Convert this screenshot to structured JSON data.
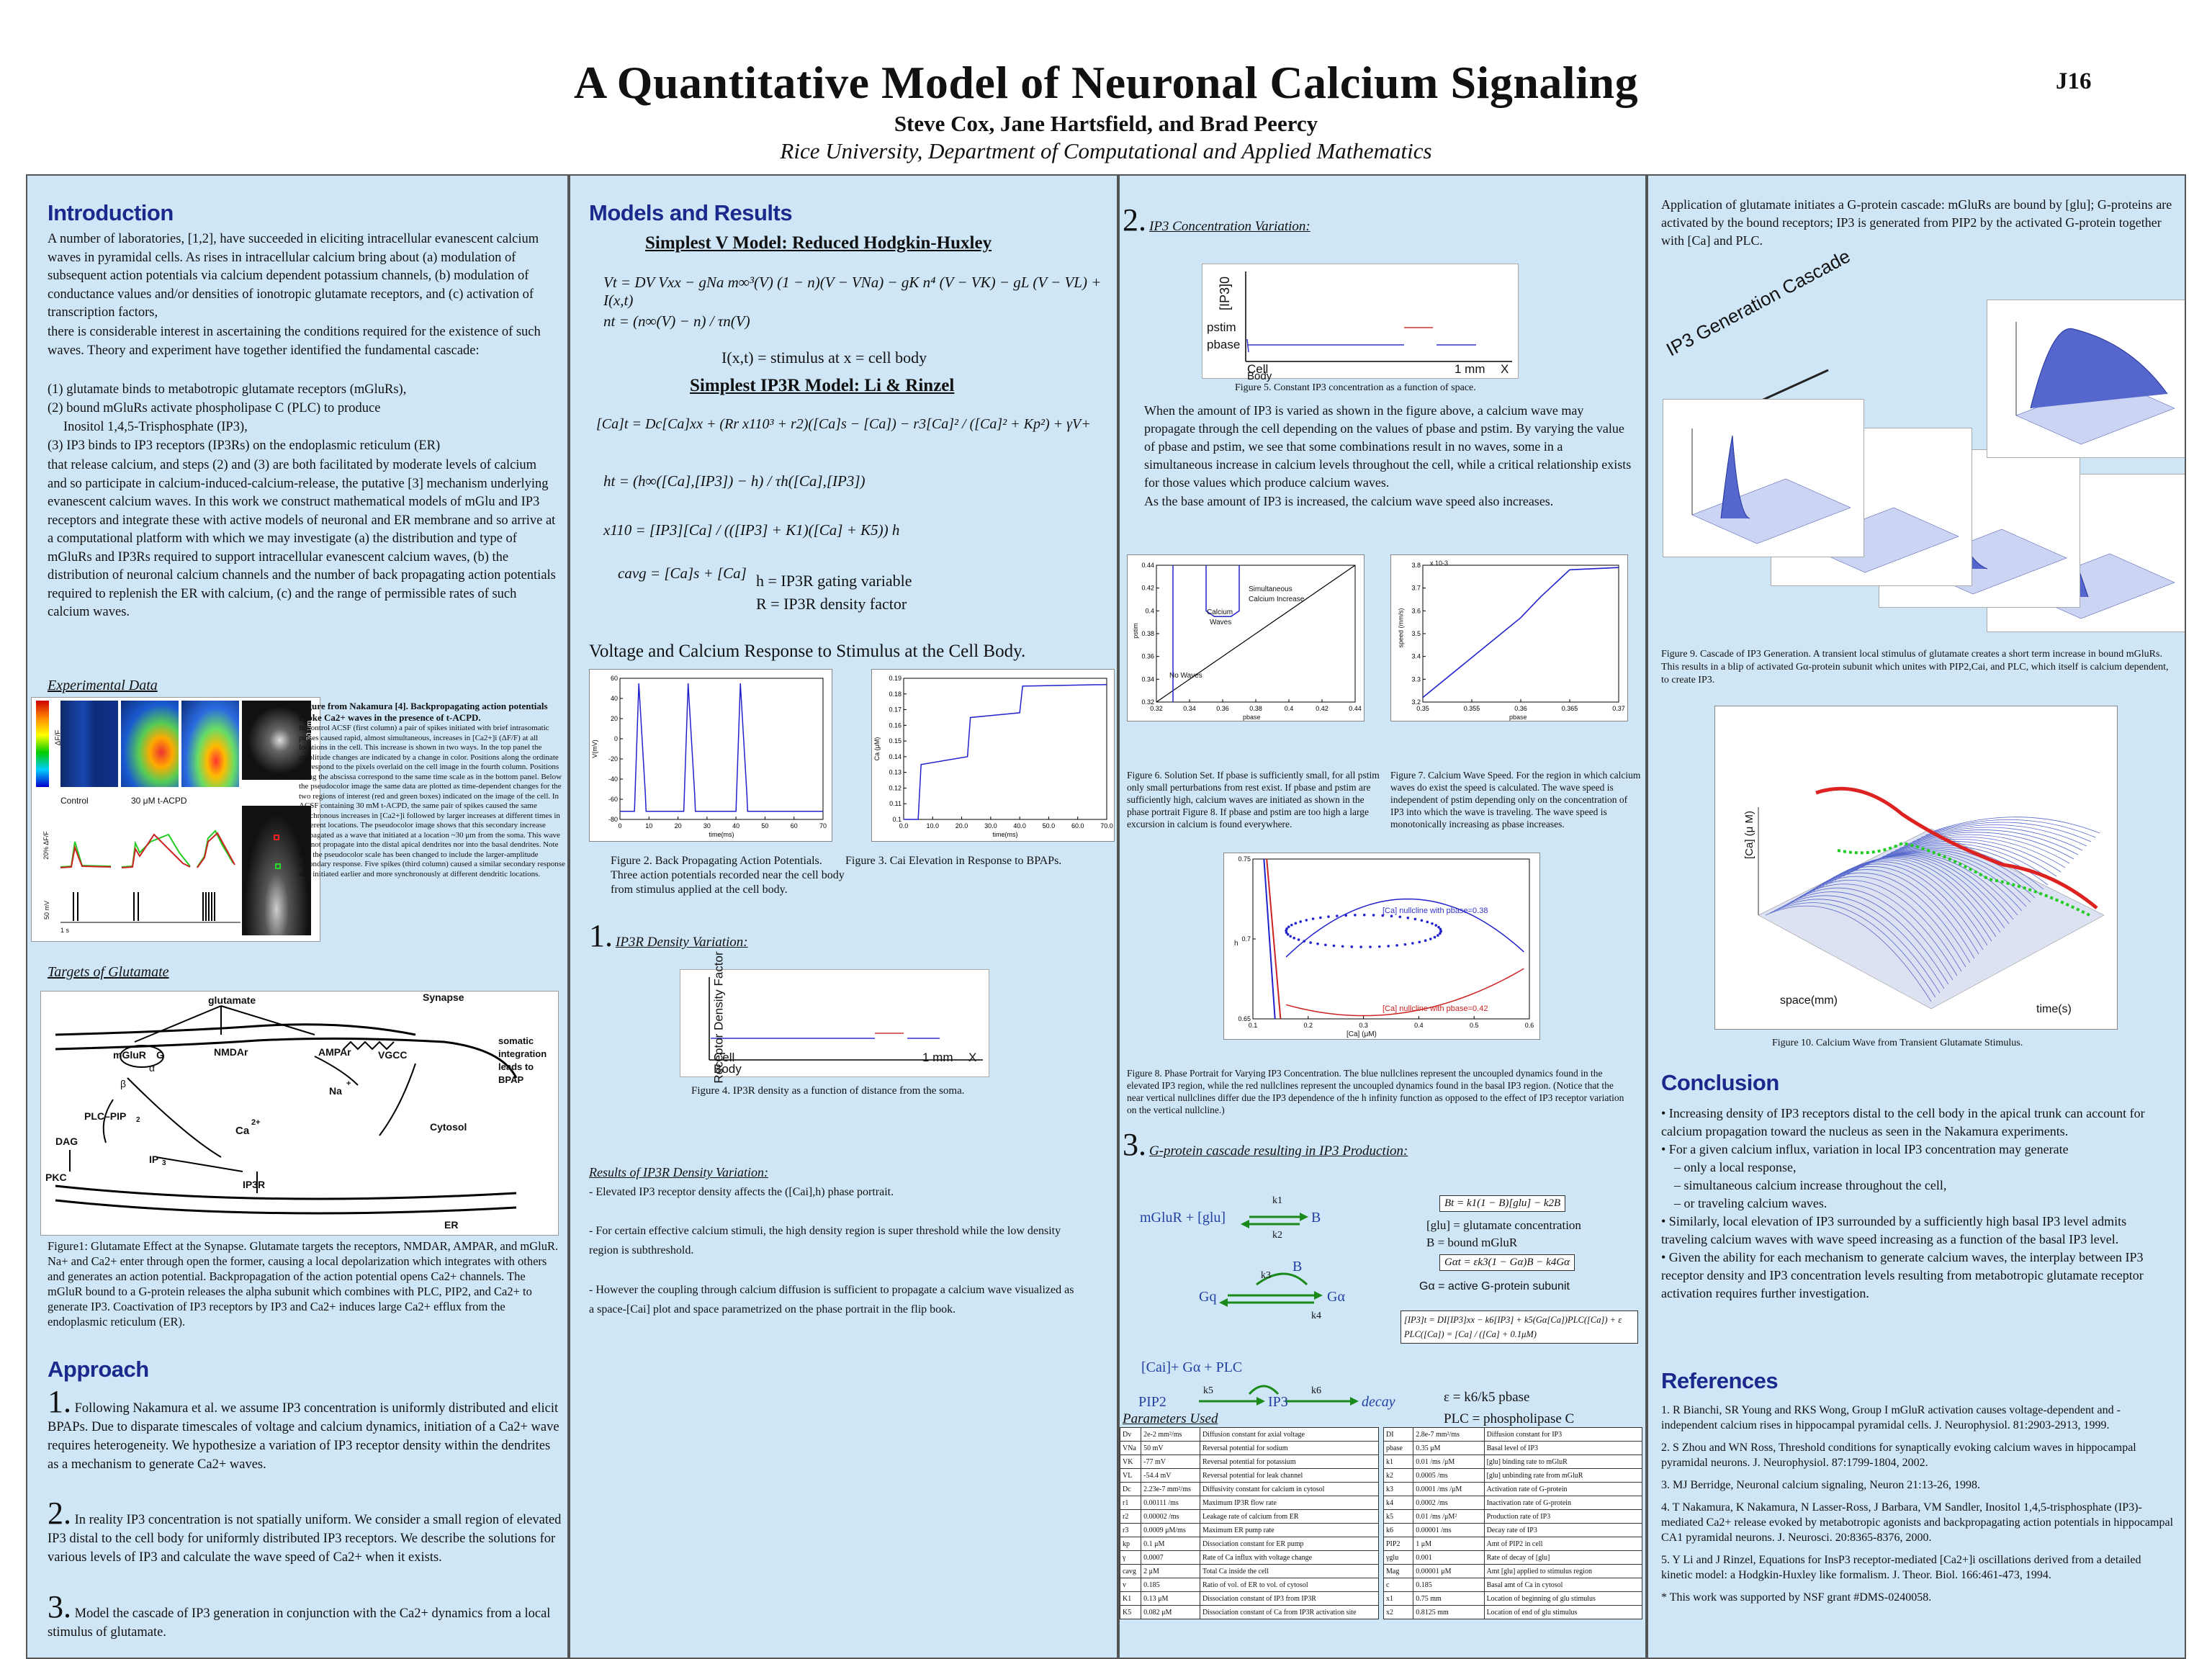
{
  "header": {
    "title": "A Quantitative Model of Neuronal Calcium Signaling",
    "authors": "Steve Cox, Jane Hartsfield, and Brad Peercy",
    "affiliation": "Rice University, Department of Computational and Applied Mathematics",
    "poster_id": "J16"
  },
  "intro": {
    "heading": "Introduction",
    "para1": "A number of laboratories, [1,2], have succeeded in eliciting intracellular evanescent calcium waves in pyramidal cells.  As rises in intracellular calcium bring about (a) modulation of subsequent action potentials via calcium dependent potassium channels, (b) modulation of conductance values and/or densities of ionotropic glutamate receptors, and (c) activation of transcription factors,",
    "para2": "there is considerable interest in ascertaining the conditions required for the existence of such waves. Theory and experiment have together identified the fundamental cascade:",
    "list": [
      "(1) glutamate binds to metabotropic glutamate receptors (mGluRs),",
      "(2) bound mGluRs activate phospholipase C (PLC) to produce",
      "Inositol 1,4,5-Trisphosphate (IP3),",
      "(3) IP3 binds to IP3 receptors (IP3Rs) on the endoplasmic reticulum (ER)"
    ],
    "para3": "that release calcium, and steps (2) and (3) are both facilitated by moderate levels of calcium and so participate in calcium-induced-calcium-release, the putative [3] mechanism underlying evanescent calcium waves. In this work we construct mathematical models of mGlu and IP3 receptors and integrate these with active models of neuronal and ER membrane and so arrive at a computational platform with which we may investigate (a) the distribution and type of mGluRs and IP3Rs required to support intracellular evanescent calcium waves, (b) the distribution of neuronal calcium channels and the number of back propagating action potentials required to replenish the ER with calcium, (c) and the range of permissible rates of such calcium waves."
  },
  "experimental": {
    "heading": "Experimental Data",
    "labels": {
      "control": "Control",
      "acpd": "30 μM t-ACPD",
      "scale1": "30 μm",
      "ybar1": "20% ΔF/F",
      "ybar2": "50 mV",
      "xbar": "1 s",
      "dff": "ΔF/F"
    },
    "caption_bold": "Figure from Nakamura [4]. Backpropagating action potentials evoke Ca2+ waves in the presence of t-ACPD.",
    "caption": "In control ACSF (first column) a pair of spikes initiated with brief intrasomatic pulses caused rapid, almost simultaneous, increases in [Ca2+]i (ΔF/F) at all locations in the cell. This increase is shown in two ways. In the top panel the amplitude changes are indicated by a change in color. Positions along the ordinate correspond to the pixels overlaid on the cell image in the fourth column. Positions along the abscissa correspond to the same time scale as in the bottom panel. Below the pseudocolor image the same data are plotted as time-dependent changes for the two regions of interest (red and green boxes) indicated on the image of the cell. In ACSF containing 30 mM t-ACPD, the same pair of spikes caused the same synchronous increases in [Ca2+]i followed by larger increases at different times in different locations. The pseudocolor image shows that this secondary increase propagated as a wave that initiated at a location ~30 μm from the soma. This wave did not propagate into the distal apical dendrites nor into the basal dendrites. Note that the pseudocolor scale has been changed to include the larger-amplitude secondary response. Five spikes (third column) caused a similar secondary response that initiated earlier and more synchronously at different dendritic locations."
  },
  "targets": {
    "heading": "Targets of Glutamate",
    "labels": {
      "glutamate": "glutamate",
      "synapse": "Synapse",
      "mglur": "mGluR",
      "g": "G",
      "alpha": "α",
      "beta": "β",
      "nmdar": "NMDAr",
      "ampar": "AMPAr",
      "vgcc": "VGCC",
      "somatic": "somatic integration leads to BPAP",
      "na": "Na",
      "plus": "+",
      "plcpip": "PLC–PIP",
      "two": "2",
      "dag": "DAG",
      "ca": "Ca",
      "ca_sup": "2+",
      "pkc": "PKC",
      "ip3": "IP",
      "ip3_sub": "3",
      "ip3r": "IP3R",
      "cytosol": "Cytosol",
      "er": "ER"
    },
    "caption": "Figure1: Glutamate Effect at the Synapse.  Glutamate targets the receptors, NMDAR, AMPAR, and mGluR.  Na+ and Ca2+ enter through open the former, causing a local depolarization which integrates with others and generates an action potential. Backpropagation of the action potential opens Ca2+ channels.  The mGluR bound to a G-protein releases the alpha subunit which combines with PLC, PIP2, and Ca2+ to generate IP3.  Coactivation of IP3 receptors by IP3 and Ca2+ induces large Ca2+ efflux from the endoplasmic reticulum (ER)."
  },
  "approach": {
    "heading": "Approach",
    "items": [
      {
        "num": "1.",
        "text": "Following Nakamura et al. we assume IP3 concentration is uniformly distributed and elicit BPAPs.  Due to disparate timescales of voltage and calcium dynamics, initiation of a Ca2+ wave requires heterogeneity.  We hypothesize a variation of IP3 receptor density within the dendrites as a mechanism to generate Ca2+ waves."
      },
      {
        "num": "2.",
        "text": "In reality IP3 concentration is not spatially uniform.  We consider a small region of elevated IP3 distal to the cell body for uniformly distributed IP3 receptors.  We describe the solutions for various levels of IP3 and calculate the wave speed of Ca2+ when it exists."
      },
      {
        "num": "3.",
        "text": "Model the cascade of IP3 generation in conjunction with the Ca2+ dynamics from a local stimulus of glutamate."
      }
    ]
  },
  "models": {
    "heading": "Models and Results",
    "v_title": "Simplest V Model: Reduced Hodgkin-Huxley",
    "v_eq": "Vt = DV Vxx − gNa m∞³(V) (1 − n)(V − VNa) − gK n⁴ (V − VK) − gL (V − VL) + I(x,t)",
    "n_eq": "nt = (n∞(V) − n) / τn(V)",
    "stim": "I(x,t) = stimulus at x = cell body",
    "ip3r_title": "Simplest IP3R Model:  Li & Rinzel",
    "ca_eq": "[Ca]t = Dc[Ca]xx + (Rr x110³ + r2)([Ca]s − [Ca]) − r3[Ca]² / ([Ca]² + Kp²) + γV+",
    "h_eq": "ht = (h∞([Ca],[IP3]) − h) / τh([Ca],[IP3])",
    "x_eq": "x110 = [IP3][Ca] / (([IP3] + K1)([Ca] + K5)) h",
    "cavg_eq": "cavg = [Ca]s + [Ca]",
    "h_def": "h = IP3R gating variable",
    "r_def": "R = IP3R density factor",
    "vc_title": "Voltage and Calcium Response to Stimulus at the Cell Body.",
    "fig2_caption": "Figure 2. Back Propagating Action Potentials.  Three action potentials recorded near the cell body from stimulus applied at the cell body.",
    "fig3_caption": "Figure 3. Cai Elevation in Response to BPAPs.",
    "sec1_num": "1.",
    "sec1_title": "IP3R Density Variation:",
    "fig4": {
      "ylabel": "Receptor Density Factor",
      "cell": "Cell",
      "body": "Body",
      "scale": "1 mm",
      "x": "X"
    },
    "fig4_caption": "Figure 4. IP3R density as a function of distance from the soma.",
    "results_title": "Results of IP3R Density Variation:",
    "results": [
      "- Elevated IP3 receptor density affects the ([Cai],h) phase portrait.",
      "- For certain effective calcium stimuli, the high density region is super threshold while the low density region is subthreshold.",
      "- However the coupling through calcium diffusion is sufficient to propagate a calcium wave visualized as a space-[Cai] plot and space parametrized on the phase portrait in the flip book."
    ]
  },
  "col3": {
    "sec2_num": "2.",
    "sec2_title": "IP3 Concentration Variation:",
    "fig5": {
      "ylabel": "[IP3]0",
      "pstim": "pstim",
      "pbase": "pbase",
      "cell": "Cell",
      "body": "Body",
      "scale": "1 mm",
      "x": "X"
    },
    "fig5_caption": "Figure 5.  Constant IP3 concentration as a function of space.",
    "para1": "When the amount of IP3 is varied as shown in the figure above,  a calcium wave may propagate through the cell depending on the values of pbase and pstim. By varying the value of pbase and pstim, we see that some combinations result in no waves, some in a simultaneous increase in calcium levels throughout the cell, while a critical relationship exists for those values which produce calcium waves.",
    "para2": "As the base amount of IP3 is increased, the calcium wave speed also increases.",
    "fig6": {
      "simult": "Simultaneous",
      "simult2": "Calcium Increase",
      "calcium": "Calcium",
      "waves": "Waves",
      "nowaves": "No Waves",
      "ylabel": "pstim",
      "xlabel": "pbase"
    },
    "fig6_caption": "Figure 6. Solution Set. If pbase is sufficiently small, for all pstim only small perturbations from rest exist.  If pbase and pstim are sufficiently high, calcium waves are initiated as shown in the phase portrait Figure 8.  If pbase and pstim are too high a large excursion in calcium is found everywhere.",
    "fig7": {
      "ylabel": "speed (mm/s)",
      "xlabel": "pbase",
      "exp": "x 10-3"
    },
    "fig7_caption": "Figure 7.  Calcium Wave Speed.  For the region in which calcium waves do exist the speed is calculated.  The wave speed is independent of pstim depending only on the concentration of IP3 into which the wave is traveling.  The wave speed is monotonically increasing as pbase increases.",
    "fig8": {
      "lbl1": "[Ca] nullcline with pbase=0.38",
      "lbl2": "[Ca] nullcline with pbase=0.42",
      "ylabel": "h",
      "xlabel": "[Ca] (μM)"
    },
    "fig8_caption": "Figure 8. Phase Portrait for Varying IP3 Concentration.  The blue nullclines  represent the uncoupled dynamics found in the elevated IP3 region, while the red nullclines represent the uncoupled dynamics found in the basal IP3 region.  (Notice that the near vertical nullclines  differ due the IP3 dependence of the h infinity function  as opposed to the effect of IP3 receptor variation on the vertical nullcline.)",
    "sec3_num": "3.",
    "sec3_title": "G-protein cascade resulting in IP3 Production:",
    "cascade": {
      "mglur": "mGluR + [glu]",
      "B": "B",
      "k1": "k1",
      "k2": "k2",
      "k3": "k3",
      "k4": "k4",
      "k5": "k5",
      "k6": "k6",
      "gq": "Gq",
      "ga": "Gα",
      "ca_plc": "[Cai]+ Gα + PLC",
      "pip2": "PIP2",
      "ip3": "IP3",
      "decay": "decay",
      "eq_b": "Bt = k1(1 − B)[glu] − k2B",
      "glu_def": "[glu] = glutamate concentration",
      "b_def": "B = bound mGluR",
      "eq_g": "Gαt = εk3(1 − Gα)B − k4Gα",
      "ga_def": "Gα = active G-protein subunit",
      "eq_ip3": "[IP3]t = DI[IP3]xx − k6[IP3] + k5(Gα[Ca])PLC([Ca]) + ε",
      "eq_plc": "PLC([Ca]) = [Ca] / ([Ca] + 0.1μM)",
      "eps_def": "ε = k6/k5 pbase",
      "plc_def": "PLC = phospholipase C"
    },
    "params_title": "Parameters Used",
    "params_left": [
      [
        "Dv",
        "2e-2 mm²/ms",
        "Diffusion constant for axial voltage"
      ],
      [
        "VNa",
        "50 mV",
        "Reversal potential for sodium"
      ],
      [
        "VK",
        "-77 mV",
        "Reversal potential for potassium"
      ],
      [
        "VL",
        "-54.4 mV",
        "Reversal potential for leak channel"
      ],
      [
        "Dc",
        "2.23e-7 mm²/ms",
        "Diffusivity constant for calcium in cytosol"
      ],
      [
        "r1",
        "0.00111 /ms",
        "Maximum IP3R flow rate"
      ],
      [
        "r2",
        "0.00002 /ms",
        "Leakage rate of calcium from ER"
      ],
      [
        "r3",
        "0.0009 μM/ms",
        "Maximum ER pump rate"
      ],
      [
        "kp",
        "0.1 μM",
        "Dissociation constant for ER pump"
      ],
      [
        "γ",
        "0.0007",
        "Rate of Ca influx with voltage change"
      ],
      [
        "cavg",
        "2 μM",
        "Total Ca inside the cell"
      ],
      [
        "v",
        "0.185",
        "Ratio of vol. of ER to vol. of cytosol"
      ],
      [
        "K1",
        "0.13 μM",
        "Dissociation constant of IP3 from IP3R"
      ],
      [
        "K5",
        "0.082 μM",
        "Dissociation constant of Ca from IP3R activation site"
      ]
    ],
    "params_right": [
      [
        "DI",
        "2.8e-7 mm²/ms",
        "Diffusion constant for IP3"
      ],
      [
        "pbase",
        "0.35 μM",
        "Basal level of IP3"
      ],
      [
        "k1",
        "0.01 /ms /μM",
        "[glu] binding rate to mGluR"
      ],
      [
        "k2",
        "0.0005 /ms",
        "[glu] unbinding rate from mGluR"
      ],
      [
        "k3",
        "0.0001 /ms /μM",
        "Activation rate of G-protein"
      ],
      [
        "k4",
        "0.0002 /ms",
        "Inactivation rate of G-protein"
      ],
      [
        "k5",
        "0.01 /ms /μM²",
        "Production rate of IP3"
      ],
      [
        "k6",
        "0.00001 /ms",
        "Decay rate of IP3"
      ],
      [
        "PIP2",
        "1 μM",
        "Amt of PIP2 in cell"
      ],
      [
        "γglu",
        "0.001",
        "Rate of decay of [glu]"
      ],
      [
        "Mag",
        "0.00001 μM",
        "Amt [glu] applied to stimulus region"
      ],
      [
        "c",
        "0.185",
        "Basal amt of Ca in cytosol"
      ],
      [
        "x1",
        "0.75 mm",
        "Location of beginning of glu stimulus"
      ],
      [
        "x2",
        "0.8125 mm",
        "Location of end of glu stimulus"
      ]
    ]
  },
  "col4": {
    "intro": "Application of glutamate initiates a G-protein cascade:  mGluRs are bound by [glu]; G-proteins are activated by the bound receptors; IP3 is generated from PIP2 by the activated G-protein together with [Ca] and PLC.",
    "cascade_label": "IP3 Generation Cascade",
    "fig9_caption": "Figure 9. Cascade of IP3 Generation.  A transient local stimulus of glutamate creates a short term increase in bound mGluRs.  This results in a blip of activated Gα-protein subunit which unites with PIP2,Cai, and PLC, which itself is  calcium  dependent, to create IP3.",
    "fig10": {
      "zlabel": "[Ca] (μ M)",
      "xlabel": "space(mm)",
      "ylabel": "time(s)"
    },
    "fig10_caption": "Figure 10.  Calcium Wave from Transient  Glutamate Stimulus.",
    "conclusion_heading": "Conclusion",
    "conclusion": [
      "• Increasing density of IP3 receptors distal to the cell body in the apical trunk can account for calcium propagation toward the nucleus as seen in the Nakamura experiments.",
      "• For a given calcium influx, variation in local IP3 concentration may generate",
      "– only a local response,",
      "– simultaneous calcium increase throughout the cell,",
      "– or traveling calcium waves.",
      "• Similarly, local elevation of IP3 surrounded by a sufficiently high basal IP3 level admits traveling calcium waves with wave speed increasing as a function of the basal IP3 level.",
      "• Given the ability for each mechanism to generate calcium waves, the interplay between IP3 receptor density and IP3 concentration levels resulting from metabotropic glutamate receptor activation requires further investigation."
    ],
    "references_heading": "References",
    "references": [
      "1. R Bianchi, SR Young and RKS Wong, Group I mGluR activation causes voltage-dependent and -independent calcium rises in hippocampal pyramidal cells.  J. Neurophysiol. 81:2903-2913, 1999.",
      "2. S Zhou and WN Ross, Threshold conditions for synaptically evoking calcium waves in hippocampal pyramidal neurons.  J. Neurophysiol. 87:1799-1804, 2002.",
      "3. MJ Berridge,  Neuronal calcium signaling, Neuron 21:13-26, 1998.",
      "4. T Nakamura, K Nakamura, N Lasser-Ross, J Barbara, VM Sandler, Inositol 1,4,5-trisphosphate (IP3)-mediated Ca2+ release evoked by metabotropic agonists and backpropagating action potentials in hippocampal CA1 pyramidal neurons. J. Neurosci. 20:8365-8376, 2000.",
      "5. Y Li and J Rinzel, Equations for InsP3 receptor-mediated [Ca2+]i oscillations derived from a detailed kinetic model: a Hodgkin-Huxley like formalism.  J. Theor. Biol. 166:461-473, 1994.",
      "* This work was supported by NSF grant #DMS-0240058."
    ]
  },
  "chart_data": [
    {
      "type": "line",
      "id": "fig2",
      "xlabel": "time(ms)",
      "ylabel": "V(mV)",
      "xlim": [
        0,
        70
      ],
      "ylim": [
        -80,
        60
      ],
      "x_ticks": [
        0,
        10,
        20,
        30,
        40,
        50,
        60,
        70
      ],
      "y_ticks": [
        60,
        40,
        20,
        0,
        -20,
        -40,
        -60,
        -80
      ],
      "spikes_at": [
        5,
        22,
        40
      ],
      "rest": -72,
      "peak": 55
    },
    {
      "type": "line",
      "id": "fig3",
      "xlabel": "time(ms)",
      "ylabel": "Ca (μM)",
      "xlim": [
        0,
        70
      ],
      "ylim": [
        0.1,
        0.19
      ],
      "x_ticks": [
        0,
        10,
        20,
        30,
        40,
        50,
        60,
        70
      ],
      "y_ticks": [
        0.19,
        0.18,
        0.17,
        0.16,
        0.15,
        0.14,
        0.13,
        0.12,
        0.11,
        0.1
      ],
      "x": [
        0,
        5,
        6,
        22,
        23,
        40,
        41,
        70
      ],
      "y": [
        0.1,
        0.1,
        0.135,
        0.14,
        0.165,
        0.168,
        0.185,
        0.186
      ]
    },
    {
      "type": "line",
      "id": "fig6",
      "xlim": [
        0.32,
        0.44
      ],
      "ylim": [
        0.32,
        0.44
      ],
      "x_ticks": [
        0.32,
        0.34,
        0.36,
        0.38,
        0.4,
        0.42,
        0.44
      ],
      "y_ticks": [
        0.44,
        0.42,
        0.4,
        0.38,
        0.36,
        0.34,
        0.32
      ]
    },
    {
      "type": "line",
      "id": "fig7",
      "xlim": [
        0.35,
        0.37
      ],
      "ylim": [
        3.2,
        3.8
      ],
      "x_ticks": [
        0.35,
        0.355,
        0.36,
        0.365,
        0.37
      ],
      "y_ticks": [
        3.8,
        3.7,
        3.6,
        3.5,
        3.4,
        3.3,
        3.2
      ],
      "x": [
        0.35,
        0.36,
        0.362,
        0.365,
        0.37
      ],
      "y": [
        3.22,
        3.57,
        3.66,
        3.78,
        3.79
      ]
    },
    {
      "type": "line",
      "id": "fig8",
      "xlim": [
        0.1,
        0.6
      ],
      "ylim": [
        0.65,
        0.75
      ],
      "x_ticks": [
        0.1,
        0.2,
        0.3,
        0.4,
        0.5,
        0.6
      ],
      "y_ticks": [
        0.75,
        0.7,
        0.65
      ]
    }
  ]
}
